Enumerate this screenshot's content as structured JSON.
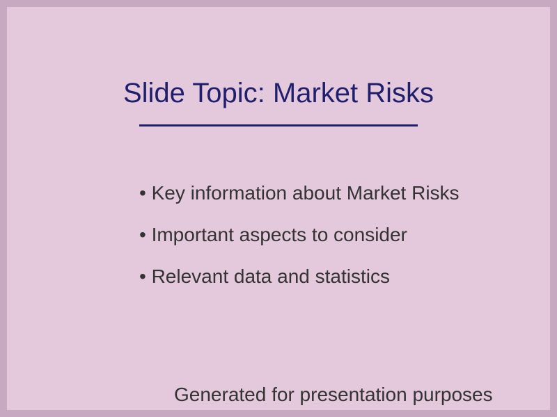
{
  "slide": {
    "title": "Slide Topic: Market Risks",
    "bullets": [
      "• Key information about Market Risks",
      "• Important aspects to consider",
      "• Relevant data and statistics"
    ],
    "footer": "Generated for presentation purposes"
  },
  "colors": {
    "frame": "#c7aac1",
    "background": "#e4c8dc",
    "title": "#1f1f6b",
    "divider": "#1f1f6b",
    "body_text": "#333333"
  }
}
